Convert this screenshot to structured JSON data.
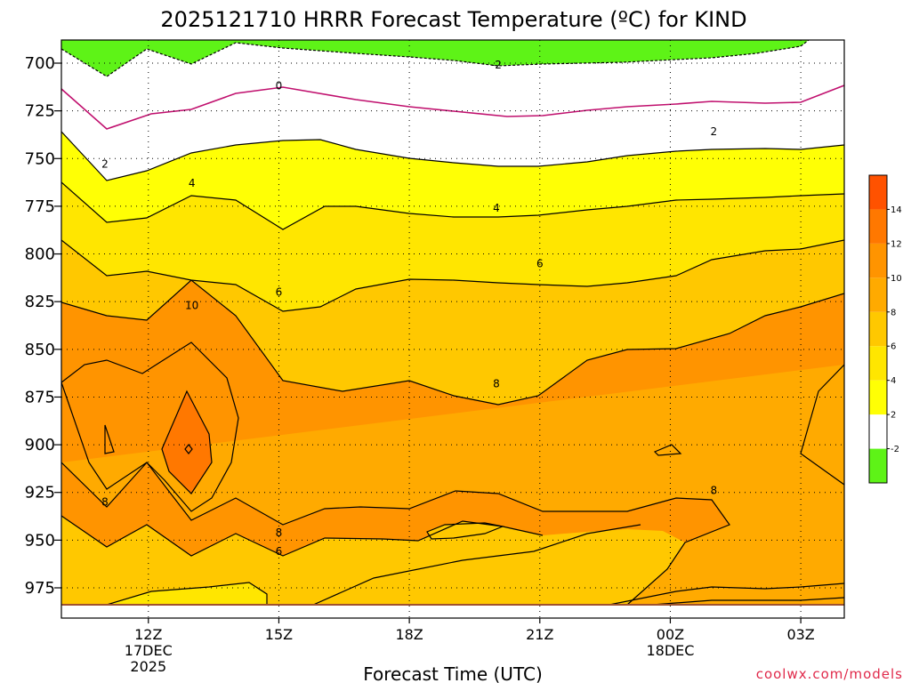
{
  "chart_data": {
    "type": "heatmap",
    "title": "2025121710 HRRR Forecast Temperature (ºC) for KIND",
    "xlabel": "Forecast Time (UTC)",
    "ylabel": "",
    "y_ticks": [
      700,
      725,
      750,
      775,
      800,
      825,
      850,
      875,
      900,
      925,
      950,
      975
    ],
    "y_axis": "pressure (hPa), inverted",
    "x_ticks": [
      {
        "label": "12Z",
        "sub": [
          "17DEC",
          "2025"
        ]
      },
      {
        "label": "15Z",
        "sub": []
      },
      {
        "label": "18Z",
        "sub": []
      },
      {
        "label": "21Z",
        "sub": []
      },
      {
        "label": "00Z",
        "sub": [
          "18DEC"
        ]
      },
      {
        "label": "03Z",
        "sub": []
      }
    ],
    "x_hours": [
      12,
      15,
      18,
      21,
      24,
      27
    ],
    "x_range_hours": [
      10,
      28
    ],
    "grid": true,
    "contour_labels": [
      {
        "text": "-2",
        "hour": 20.0,
        "p": 701
      },
      {
        "text": "0",
        "hour": 15.0,
        "p": 712
      },
      {
        "text": "2",
        "hour": 11.0,
        "p": 753
      },
      {
        "text": "2",
        "hour": 25.0,
        "p": 736
      },
      {
        "text": "4",
        "hour": 13.0,
        "p": 763
      },
      {
        "text": "4",
        "hour": 20.0,
        "p": 776
      },
      {
        "text": "6",
        "hour": 15.0,
        "p": 820
      },
      {
        "text": "6",
        "hour": 21.0,
        "p": 805
      },
      {
        "text": "6",
        "hour": 15.0,
        "p": 956
      },
      {
        "text": "8",
        "hour": 11.0,
        "p": 930
      },
      {
        "text": "8",
        "hour": 15.0,
        "p": 946
      },
      {
        "text": "8",
        "hour": 20.0,
        "p": 868
      },
      {
        "text": "8",
        "hour": 25.0,
        "p": 924
      },
      {
        "text": "10",
        "hour": 13.0,
        "p": 827
      }
    ],
    "colorbar": {
      "levels": [
        -2,
        2,
        4,
        6,
        8,
        10,
        12,
        14
      ],
      "colors": [
        "#5ef317",
        "#ffffff",
        "#ffff05",
        "#ffe600",
        "#ffc800",
        "#ffaa00",
        "#ff9400",
        "#ff7800",
        "#ff5200"
      ]
    }
  },
  "credit": "coolwx.com/models"
}
